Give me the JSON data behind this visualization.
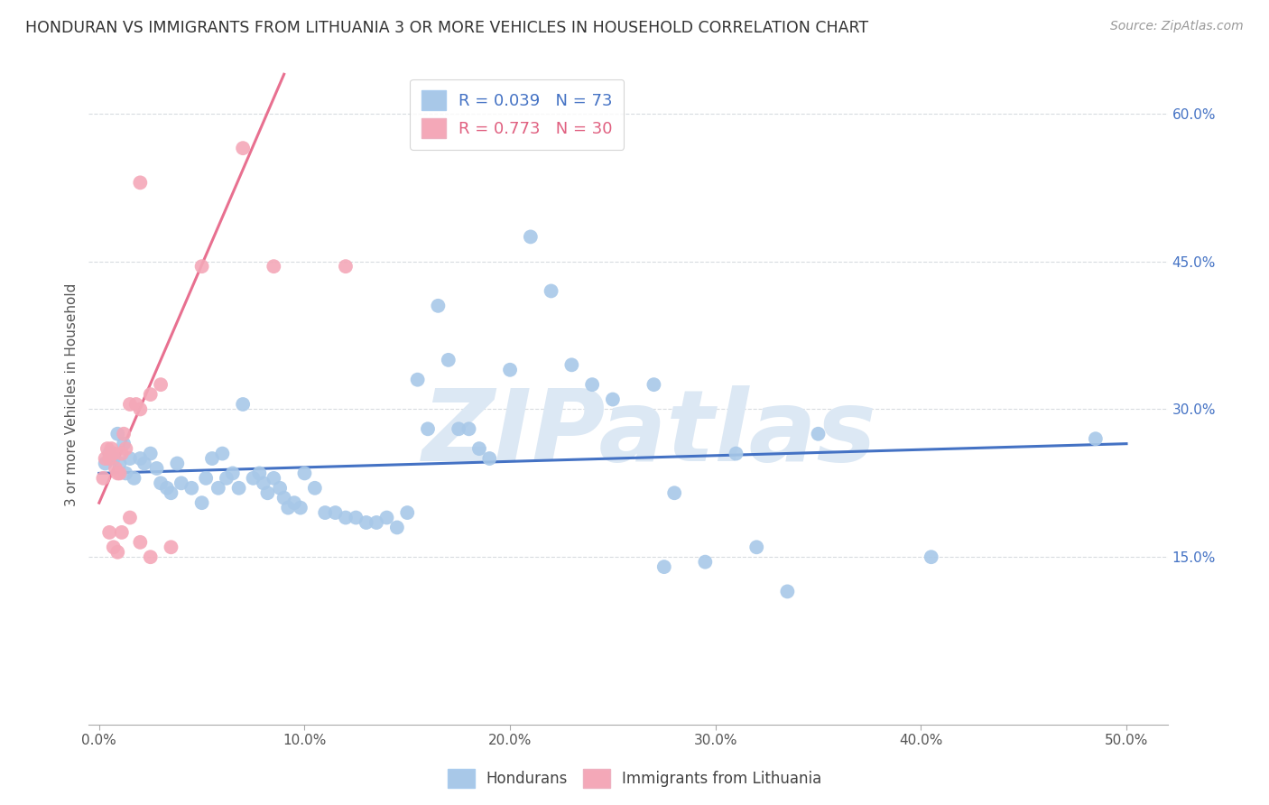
{
  "title": "HONDURAN VS IMMIGRANTS FROM LITHUANIA 3 OR MORE VEHICLES IN HOUSEHOLD CORRELATION CHART",
  "source": "Source: ZipAtlas.com",
  "xlabel_ticks": [
    "0.0%",
    "10.0%",
    "20.0%",
    "30.0%",
    "40.0%",
    "50.0%"
  ],
  "xlabel_vals": [
    0.0,
    10.0,
    20.0,
    30.0,
    40.0,
    50.0
  ],
  "ylabel_ticks": [
    "60.0%",
    "45.0%",
    "30.0%",
    "15.0%"
  ],
  "ylabel_vals": [
    60.0,
    45.0,
    30.0,
    15.0
  ],
  "ylabel_label": "3 or more Vehicles in Household",
  "xlim": [
    -0.5,
    52.0
  ],
  "ylim": [
    -2.0,
    65.0
  ],
  "blue_color": "#a8c8e8",
  "pink_color": "#f4a8b8",
  "blue_line_color": "#4472c4",
  "pink_line_color": "#e87090",
  "blue_points": [
    [
      0.3,
      24.5
    ],
    [
      0.5,
      25.5
    ],
    [
      0.7,
      25.0
    ],
    [
      0.9,
      27.5
    ],
    [
      1.0,
      24.5
    ],
    [
      1.2,
      26.5
    ],
    [
      1.3,
      23.5
    ],
    [
      1.5,
      25.0
    ],
    [
      1.7,
      23.0
    ],
    [
      2.0,
      25.0
    ],
    [
      2.2,
      24.5
    ],
    [
      2.5,
      25.5
    ],
    [
      2.8,
      24.0
    ],
    [
      3.0,
      22.5
    ],
    [
      3.3,
      22.0
    ],
    [
      3.5,
      21.5
    ],
    [
      3.8,
      24.5
    ],
    [
      4.0,
      22.5
    ],
    [
      4.5,
      22.0
    ],
    [
      5.0,
      20.5
    ],
    [
      5.2,
      23.0
    ],
    [
      5.5,
      25.0
    ],
    [
      5.8,
      22.0
    ],
    [
      6.0,
      25.5
    ],
    [
      6.2,
      23.0
    ],
    [
      6.5,
      23.5
    ],
    [
      6.8,
      22.0
    ],
    [
      7.0,
      30.5
    ],
    [
      7.5,
      23.0
    ],
    [
      7.8,
      23.5
    ],
    [
      8.0,
      22.5
    ],
    [
      8.2,
      21.5
    ],
    [
      8.5,
      23.0
    ],
    [
      8.8,
      22.0
    ],
    [
      9.0,
      21.0
    ],
    [
      9.2,
      20.0
    ],
    [
      9.5,
      20.5
    ],
    [
      9.8,
      20.0
    ],
    [
      10.0,
      23.5
    ],
    [
      10.5,
      22.0
    ],
    [
      11.0,
      19.5
    ],
    [
      11.5,
      19.5
    ],
    [
      12.0,
      19.0
    ],
    [
      12.5,
      19.0
    ],
    [
      13.0,
      18.5
    ],
    [
      13.5,
      18.5
    ],
    [
      14.0,
      19.0
    ],
    [
      14.5,
      18.0
    ],
    [
      15.0,
      19.5
    ],
    [
      15.5,
      33.0
    ],
    [
      16.0,
      28.0
    ],
    [
      16.5,
      40.5
    ],
    [
      17.0,
      35.0
    ],
    [
      17.5,
      28.0
    ],
    [
      18.0,
      28.0
    ],
    [
      18.5,
      26.0
    ],
    [
      19.0,
      25.0
    ],
    [
      20.0,
      34.0
    ],
    [
      21.0,
      47.5
    ],
    [
      22.0,
      42.0
    ],
    [
      23.0,
      34.5
    ],
    [
      24.0,
      32.5
    ],
    [
      25.0,
      31.0
    ],
    [
      27.0,
      32.5
    ],
    [
      27.5,
      14.0
    ],
    [
      28.0,
      21.5
    ],
    [
      29.5,
      14.5
    ],
    [
      31.0,
      25.5
    ],
    [
      32.0,
      16.0
    ],
    [
      33.5,
      11.5
    ],
    [
      35.0,
      27.5
    ],
    [
      40.5,
      15.0
    ],
    [
      48.5,
      27.0
    ]
  ],
  "pink_points": [
    [
      0.2,
      23.0
    ],
    [
      0.3,
      25.0
    ],
    [
      0.4,
      26.0
    ],
    [
      0.5,
      25.0
    ],
    [
      0.6,
      26.0
    ],
    [
      0.7,
      25.5
    ],
    [
      0.8,
      24.0
    ],
    [
      0.9,
      23.5
    ],
    [
      1.0,
      23.5
    ],
    [
      1.1,
      25.5
    ],
    [
      1.2,
      27.5
    ],
    [
      1.3,
      26.0
    ],
    [
      1.5,
      30.5
    ],
    [
      1.8,
      30.5
    ],
    [
      2.0,
      30.0
    ],
    [
      2.5,
      31.5
    ],
    [
      3.0,
      32.5
    ],
    [
      0.5,
      17.5
    ],
    [
      0.7,
      16.0
    ],
    [
      0.9,
      15.5
    ],
    [
      1.1,
      17.5
    ],
    [
      1.5,
      19.0
    ],
    [
      2.0,
      16.5
    ],
    [
      2.5,
      15.0
    ],
    [
      3.5,
      16.0
    ],
    [
      2.0,
      53.0
    ],
    [
      5.0,
      44.5
    ],
    [
      7.0,
      56.5
    ],
    [
      8.5,
      44.5
    ],
    [
      12.0,
      44.5
    ]
  ],
  "blue_trend_x": [
    0.0,
    50.0
  ],
  "blue_trend_y": [
    23.5,
    26.5
  ],
  "pink_trend_x": [
    0.0,
    9.0
  ],
  "pink_trend_y": [
    20.5,
    64.0
  ],
  "watermark": "ZIPatlas",
  "background_color": "#ffffff",
  "grid_color": "#d8dce0"
}
